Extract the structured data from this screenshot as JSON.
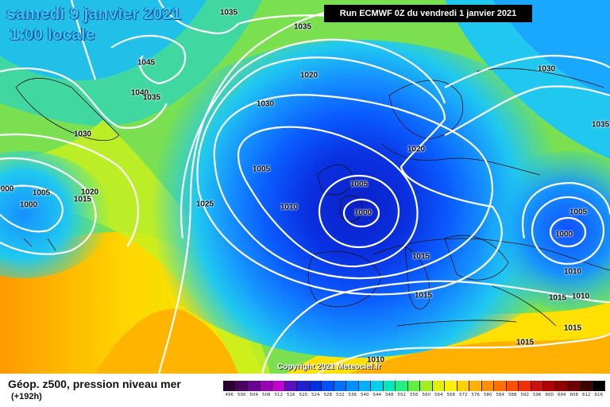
{
  "header": {
    "date": "samedi 9 janvier 2021",
    "time": "1:00 locale",
    "run": "Run ECMWF 0Z du vendredi 1 janvier 2021"
  },
  "map": {
    "copyright": "Copyright 2021 Meteociel.fr",
    "isobar_labels": [
      "1035",
      "1035",
      "1020",
      "1045",
      "1040",
      "1035",
      "1030",
      "1030",
      "1020",
      "1030",
      "1035",
      "1005",
      "1000",
      "1005",
      "1020",
      "1015",
      "1025",
      "1010",
      "1005",
      "1000",
      "1015",
      "1005",
      "1000",
      "1010",
      "1015",
      "1015",
      "1010",
      "1015",
      "1015",
      "1010",
      "000"
    ]
  },
  "footer": {
    "title": "Géop. z500, pression niveau mer",
    "subtitle": "(+192h)",
    "scale_values": [
      "496",
      "500",
      "504",
      "508",
      "512",
      "516",
      "520",
      "524",
      "528",
      "532",
      "536",
      "540",
      "544",
      "548",
      "552",
      "556",
      "560",
      "564",
      "568",
      "572",
      "576",
      "580",
      "584",
      "588",
      "592",
      "596",
      "600",
      "604",
      "608",
      "612",
      "616"
    ],
    "scale_colors": [
      "#2a0030",
      "#4a0060",
      "#6a0090",
      "#9a00b8",
      "#c000d0",
      "#5a10c0",
      "#2020d0",
      "#0030e0",
      "#0050ff",
      "#0070ff",
      "#0090ff",
      "#00b0ff",
      "#00d0f0",
      "#00e8c0",
      "#20f080",
      "#60f040",
      "#a0f020",
      "#e0f000",
      "#fff000",
      "#ffd000",
      "#ffb000",
      "#ff9000",
      "#ff7000",
      "#ff5000",
      "#f03000",
      "#d01010",
      "#b00000",
      "#900000",
      "#700000",
      "#400000",
      "#000000"
    ]
  }
}
